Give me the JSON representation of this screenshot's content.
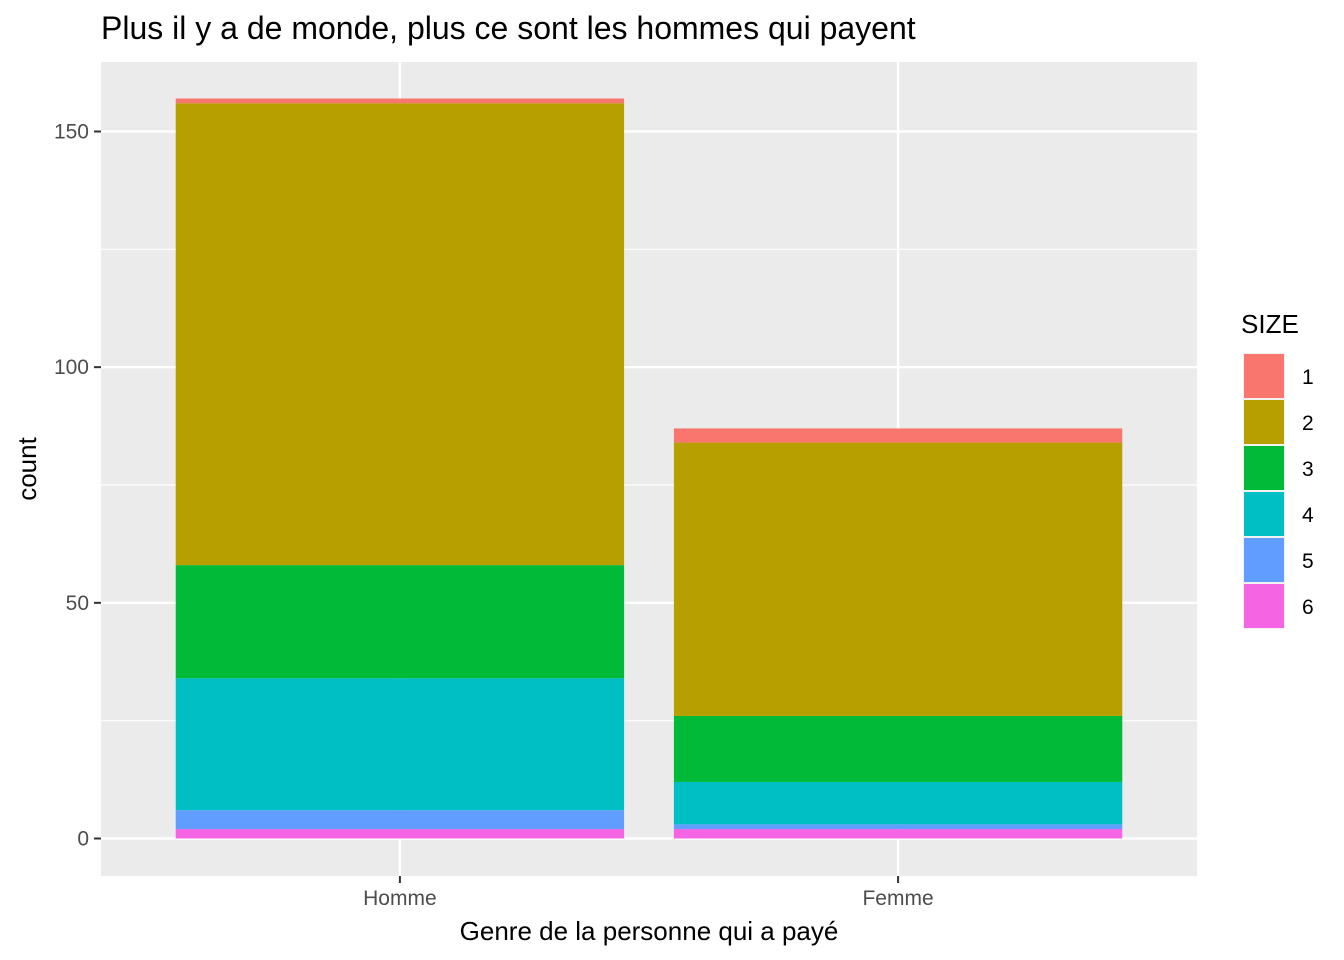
{
  "chart_data": {
    "type": "bar",
    "stacked": true,
    "title": "Plus il y a de monde, plus ce sont les hommes qui payent",
    "xlabel": "Genre de la personne qui a payé",
    "ylabel": "count",
    "categories": [
      "Homme",
      "Femme"
    ],
    "ylim": [
      -7,
      158
    ],
    "yticks": [
      0,
      50,
      100,
      150
    ],
    "grid": true,
    "legend": {
      "title": "SIZE",
      "position": "right"
    },
    "series": [
      {
        "name": "1",
        "color": "#F8766D",
        "values": [
          1,
          3
        ]
      },
      {
        "name": "2",
        "color": "#B79F00",
        "values": [
          98,
          58
        ]
      },
      {
        "name": "3",
        "color": "#00BA38",
        "values": [
          24,
          14
        ]
      },
      {
        "name": "4",
        "color": "#00BFC4",
        "values": [
          28,
          9
        ]
      },
      {
        "name": "5",
        "color": "#619CFF",
        "values": [
          4,
          1
        ]
      },
      {
        "name": "6",
        "color": "#F564E3",
        "values": [
          2,
          2
        ]
      }
    ]
  }
}
